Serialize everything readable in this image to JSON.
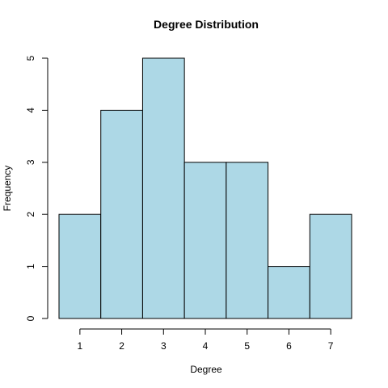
{
  "chart_data": {
    "type": "bar",
    "title": "Degree Distribution",
    "xlabel": "Degree",
    "ylabel": "Frequency",
    "categories": [
      "1",
      "2",
      "3",
      "4",
      "5",
      "6",
      "7"
    ],
    "values": [
      2,
      4,
      5,
      3,
      3,
      1,
      2
    ],
    "x_ticks": [
      1,
      2,
      3,
      4,
      5,
      6,
      7
    ],
    "y_ticks": [
      0,
      1,
      2,
      3,
      4,
      5
    ],
    "xlim": [
      0.5,
      7.5
    ],
    "ylim": [
      0,
      5
    ],
    "grid": false,
    "bar_fill": "#add8e6",
    "bar_stroke": "#000000"
  }
}
